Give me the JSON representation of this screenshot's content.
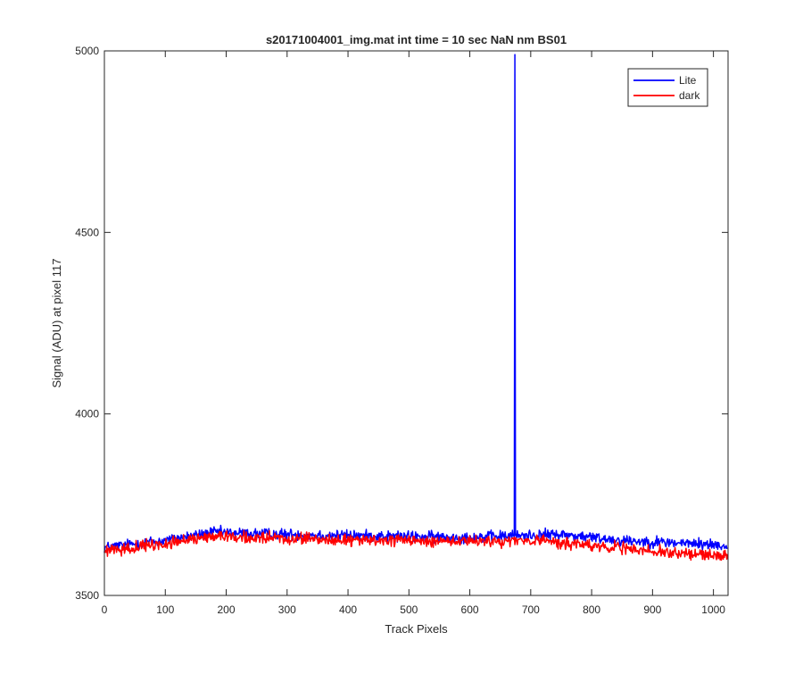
{
  "chart_data": {
    "type": "line",
    "title": "s20171004001_img.mat int time = 10 sec  NaN nm BS01",
    "xlabel": "Track Pixels",
    "ylabel": "Signal (ADU) at pixel 117",
    "xlim": [
      0,
      1024
    ],
    "ylim": [
      3500,
      5000
    ],
    "xticks": [
      0,
      100,
      200,
      300,
      400,
      500,
      600,
      700,
      800,
      900,
      1000
    ],
    "yticks": [
      3500,
      4000,
      4500,
      5000
    ],
    "grid": false,
    "legend_position": "top-right",
    "series": [
      {
        "name": "Lite",
        "color": "#0000ff",
        "n_points": 1024,
        "baseline_profile": [
          [
            0,
            3632
          ],
          [
            50,
            3642
          ],
          [
            100,
            3652
          ],
          [
            180,
            3674
          ],
          [
            250,
            3670
          ],
          [
            400,
            3665
          ],
          [
            500,
            3662
          ],
          [
            600,
            3660
          ],
          [
            680,
            3665
          ],
          [
            750,
            3668
          ],
          [
            850,
            3652
          ],
          [
            900,
            3648
          ],
          [
            1000,
            3640
          ],
          [
            1023,
            3635
          ]
        ],
        "noise_amplitude": 14,
        "spikes": [
          {
            "x": 673,
            "y": 3660
          },
          {
            "x": 674,
            "y": 4990
          },
          {
            "x": 675,
            "y": 3665
          }
        ]
      },
      {
        "name": "dark",
        "color": "#ff0000",
        "n_points": 1024,
        "baseline_profile": [
          [
            0,
            3620
          ],
          [
            50,
            3632
          ],
          [
            100,
            3642
          ],
          [
            180,
            3665
          ],
          [
            250,
            3658
          ],
          [
            400,
            3652
          ],
          [
            500,
            3650
          ],
          [
            600,
            3648
          ],
          [
            700,
            3652
          ],
          [
            750,
            3645
          ],
          [
            850,
            3630
          ],
          [
            900,
            3620
          ],
          [
            1000,
            3612
          ],
          [
            1023,
            3610
          ]
        ],
        "noise_amplitude": 14,
        "spikes": []
      }
    ]
  }
}
